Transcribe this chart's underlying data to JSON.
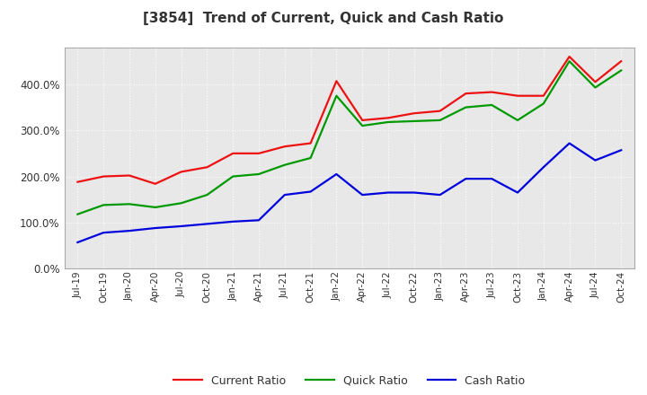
{
  "title": "[3854]  Trend of Current, Quick and Cash Ratio",
  "title_fontsize": 11,
  "title_color": "#333333",
  "background_color": "#ffffff",
  "plot_bg_color": "#e8e8e8",
  "grid_color": "#ffffff",
  "x_labels": [
    "Jul-19",
    "Oct-19",
    "Jan-20",
    "Apr-20",
    "Jul-20",
    "Oct-20",
    "Jan-21",
    "Apr-21",
    "Jul-21",
    "Oct-21",
    "Jan-22",
    "Apr-22",
    "Jul-22",
    "Oct-22",
    "Jan-23",
    "Apr-23",
    "Jul-23",
    "Oct-23",
    "Jan-24",
    "Apr-24",
    "Jul-24",
    "Oct-24"
  ],
  "current_ratio": [
    1.88,
    2.0,
    2.02,
    1.84,
    2.1,
    2.2,
    2.5,
    2.5,
    2.65,
    2.72,
    4.07,
    3.22,
    3.27,
    3.37,
    3.42,
    3.8,
    3.83,
    3.75,
    3.75,
    4.6,
    4.05,
    4.5
  ],
  "quick_ratio": [
    1.18,
    1.38,
    1.4,
    1.33,
    1.42,
    1.6,
    2.0,
    2.05,
    2.25,
    2.4,
    3.75,
    3.1,
    3.18,
    3.2,
    3.22,
    3.5,
    3.55,
    3.22,
    3.58,
    4.5,
    3.93,
    4.3
  ],
  "cash_ratio": [
    0.57,
    0.78,
    0.82,
    0.88,
    0.92,
    0.97,
    1.02,
    1.05,
    1.6,
    1.67,
    2.05,
    1.6,
    1.65,
    1.65,
    1.6,
    1.95,
    1.95,
    1.65,
    2.2,
    2.72,
    2.35,
    2.57
  ],
  "current_color": "#ee1111",
  "quick_color": "#009900",
  "cash_color": "#0000dd",
  "line_width": 1.6,
  "ylim_min": 0.0,
  "ylim_max": 4.8,
  "ytick_values": [
    0.0,
    1.0,
    2.0,
    3.0,
    4.0
  ],
  "legend_labels": [
    "Current Ratio",
    "Quick Ratio",
    "Cash Ratio"
  ]
}
